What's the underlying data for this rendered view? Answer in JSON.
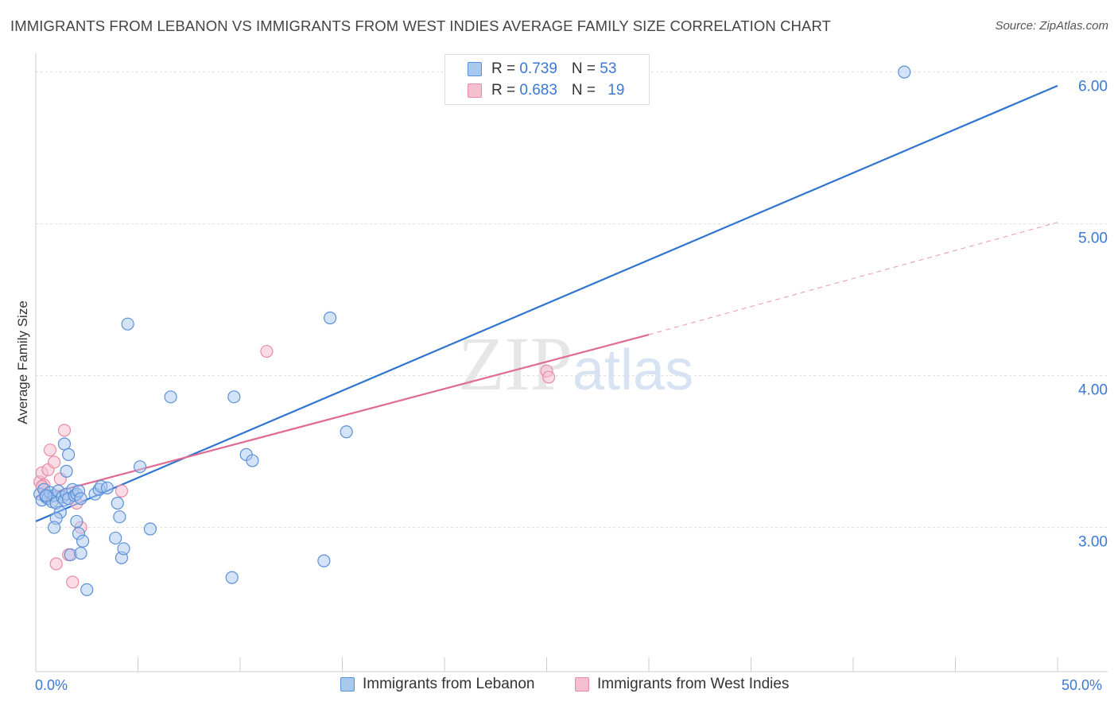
{
  "header": {
    "title": "IMMIGRANTS FROM LEBANON VS IMMIGRANTS FROM WEST INDIES AVERAGE FAMILY SIZE CORRELATION CHART",
    "source": "Source: ZipAtlas.com"
  },
  "legend": {
    "rows": [
      {
        "r_label": "R = ",
        "r_value": "0.739",
        "n_label": "N = ",
        "n_value": "53"
      },
      {
        "r_label": "R = ",
        "r_value": "0.683",
        "n_label": "N = ",
        "n_value": "19"
      }
    ]
  },
  "bottom_legend": {
    "series1": "Immigrants from Lebanon",
    "series2": "Immigrants from West Indies"
  },
  "axis": {
    "x_min_label": "0.0%",
    "x_max_label": "50.0%"
  },
  "colors": {
    "blue_fill": "#a9c8f0",
    "blue_stroke": "#5b8fd6",
    "blue_line": "#2f74d0",
    "pink_fill": "#f6bfd0",
    "pink_stroke": "#e98aa7",
    "pink_line": "#e06a92",
    "axis_label": "#3a78d4"
  },
  "chart_data": {
    "type": "scatter",
    "title": "IMMIGRANTS FROM LEBANON VS IMMIGRANTS FROM WEST INDIES AVERAGE FAMILY SIZE CORRELATION CHART",
    "xlabel": "",
    "ylabel": "Average Family Size",
    "xlim": [
      0,
      50
    ],
    "ylim": [
      2.05,
      6.15
    ],
    "y_ticks": [
      3.0,
      4.0,
      5.0,
      6.0
    ],
    "y_tick_labels": [
      "3.00",
      "4.00",
      "5.00",
      "6.00"
    ],
    "x_ticks": [
      0,
      5,
      10,
      15,
      20,
      25,
      30,
      35,
      40,
      45,
      50
    ],
    "watermark": "ZIPatlas",
    "series": [
      {
        "name": "Immigrants from Lebanon",
        "r": 0.739,
        "n": 53,
        "trend": {
          "x0": 0,
          "y0": 3.04,
          "x1": 50,
          "y1": 5.91
        },
        "points": [
          [
            0.2,
            3.22
          ],
          [
            0.3,
            3.18
          ],
          [
            0.4,
            3.25
          ],
          [
            0.5,
            3.2
          ],
          [
            0.6,
            3.19
          ],
          [
            0.7,
            3.23
          ],
          [
            0.8,
            3.17
          ],
          [
            0.9,
            3.21
          ],
          [
            1.0,
            3.16
          ],
          [
            1.1,
            3.24
          ],
          [
            1.2,
            3.1
          ],
          [
            1.3,
            3.2
          ],
          [
            1.4,
            3.18
          ],
          [
            1.5,
            3.22
          ],
          [
            1.6,
            3.19
          ],
          [
            1.8,
            3.25
          ],
          [
            1.9,
            3.21
          ],
          [
            1.0,
            3.06
          ],
          [
            0.9,
            3.0
          ],
          [
            1.4,
            3.55
          ],
          [
            1.5,
            3.37
          ],
          [
            1.6,
            3.48
          ],
          [
            1.7,
            2.82
          ],
          [
            2.0,
            3.22
          ],
          [
            2.1,
            3.24
          ],
          [
            2.2,
            3.19
          ],
          [
            2.0,
            3.04
          ],
          [
            2.1,
            2.96
          ],
          [
            2.2,
            2.83
          ],
          [
            2.3,
            2.91
          ],
          [
            2.5,
            2.59
          ],
          [
            2.9,
            3.22
          ],
          [
            3.1,
            3.25
          ],
          [
            3.2,
            3.27
          ],
          [
            3.5,
            3.26
          ],
          [
            3.9,
            2.93
          ],
          [
            4.0,
            3.16
          ],
          [
            4.1,
            3.07
          ],
          [
            4.2,
            2.8
          ],
          [
            4.3,
            2.86
          ],
          [
            4.5,
            4.34
          ],
          [
            5.1,
            3.4
          ],
          [
            5.6,
            2.99
          ],
          [
            6.6,
            3.86
          ],
          [
            9.6,
            2.67
          ],
          [
            9.7,
            3.86
          ],
          [
            10.3,
            3.48
          ],
          [
            10.6,
            3.44
          ],
          [
            14.1,
            2.78
          ],
          [
            14.4,
            4.38
          ],
          [
            15.2,
            3.63
          ],
          [
            42.5,
            6.0
          ],
          [
            0.5,
            3.21
          ]
        ]
      },
      {
        "name": "Immigrants from West Indies",
        "r": 0.683,
        "n": 19,
        "trend": {
          "x0": 0,
          "y0": 3.2,
          "x1": 30,
          "y1": 4.27,
          "dash_x1": 50,
          "dash_y1": 5.01
        },
        "points": [
          [
            0.2,
            3.3
          ],
          [
            0.3,
            3.36
          ],
          [
            0.4,
            3.28
          ],
          [
            0.5,
            3.22
          ],
          [
            0.6,
            3.38
          ],
          [
            0.7,
            3.51
          ],
          [
            0.9,
            3.43
          ],
          [
            1.0,
            2.76
          ],
          [
            1.2,
            3.32
          ],
          [
            1.4,
            3.64
          ],
          [
            1.6,
            2.82
          ],
          [
            1.8,
            2.64
          ],
          [
            2.0,
            3.16
          ],
          [
            2.2,
            3.0
          ],
          [
            4.2,
            3.24
          ],
          [
            11.3,
            4.16
          ],
          [
            25.0,
            4.03
          ],
          [
            25.1,
            3.99
          ],
          [
            0.3,
            3.27
          ]
        ]
      }
    ]
  }
}
